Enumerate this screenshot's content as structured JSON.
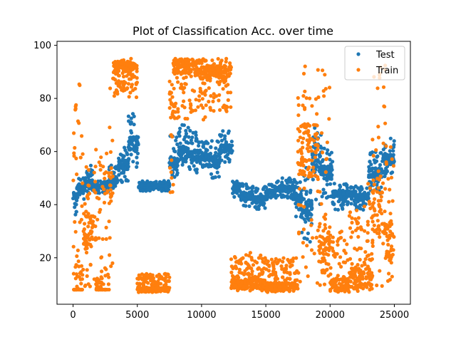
{
  "chart_data": {
    "type": "scatter",
    "title": "Plot of Classification Acc. over time",
    "xlabel": "",
    "ylabel": "",
    "xlim": [
      -1250,
      26250
    ],
    "ylim": [
      2.5,
      101.5
    ],
    "xticks": [
      0,
      5000,
      10000,
      15000,
      20000,
      25000
    ],
    "yticks": [
      20,
      40,
      60,
      80,
      100
    ],
    "grid": false,
    "legend_position": "top-right",
    "series": [
      {
        "name": "Test",
        "color": "#1f77b4",
        "segments": [
          {
            "x0": 0,
            "x1": 300,
            "lo": 36,
            "hi": 48,
            "mid": 43
          },
          {
            "x0": 300,
            "x1": 900,
            "lo": 42,
            "hi": 50,
            "mid": 46
          },
          {
            "x0": 900,
            "x1": 1500,
            "lo": 44,
            "hi": 55,
            "mid": 48
          },
          {
            "x0": 1500,
            "x1": 2800,
            "lo": 44,
            "hi": 49,
            "mid": 47
          },
          {
            "x0": 2800,
            "x1": 3500,
            "lo": 46,
            "hi": 55,
            "mid": 49
          },
          {
            "x0": 3500,
            "x1": 4300,
            "lo": 48,
            "hi": 62,
            "mid": 55
          },
          {
            "x0": 4300,
            "x1": 5100,
            "lo": 54,
            "hi": 75,
            "mid": 63
          },
          {
            "x0": 5100,
            "x1": 7500,
            "lo": 45,
            "hi": 49,
            "mid": 47
          },
          {
            "x0": 7500,
            "x1": 8200,
            "lo": 50,
            "hi": 66,
            "mid": 56
          },
          {
            "x0": 8200,
            "x1": 9000,
            "lo": 55,
            "hi": 70,
            "mid": 60
          },
          {
            "x0": 9000,
            "x1": 9800,
            "lo": 52,
            "hi": 68,
            "mid": 58
          },
          {
            "x0": 9800,
            "x1": 10600,
            "lo": 54,
            "hi": 64,
            "mid": 58
          },
          {
            "x0": 10600,
            "x1": 11400,
            "lo": 50,
            "hi": 64,
            "mid": 56
          },
          {
            "x0": 11400,
            "x1": 12400,
            "lo": 56,
            "hi": 68,
            "mid": 61
          },
          {
            "x0": 12400,
            "x1": 13000,
            "lo": 42,
            "hi": 49,
            "mid": 46
          },
          {
            "x0": 13000,
            "x1": 14000,
            "lo": 39,
            "hi": 48,
            "mid": 43
          },
          {
            "x0": 14000,
            "x1": 15000,
            "lo": 38,
            "hi": 47,
            "mid": 42
          },
          {
            "x0": 15000,
            "x1": 15700,
            "lo": 42,
            "hi": 48,
            "mid": 45
          },
          {
            "x0": 15700,
            "x1": 17300,
            "lo": 42,
            "hi": 50,
            "mid": 46
          },
          {
            "x0": 17300,
            "x1": 17800,
            "lo": 35,
            "hi": 50,
            "mid": 42
          },
          {
            "x0": 17800,
            "x1": 18600,
            "lo": 24,
            "hi": 55,
            "mid": 38
          },
          {
            "x0": 18600,
            "x1": 19300,
            "lo": 40,
            "hi": 70,
            "mid": 56
          },
          {
            "x0": 19300,
            "x1": 20200,
            "lo": 42,
            "hi": 62,
            "mid": 52
          },
          {
            "x0": 20200,
            "x1": 21000,
            "lo": 38,
            "hi": 48,
            "mid": 44
          },
          {
            "x0": 21000,
            "x1": 22000,
            "lo": 40,
            "hi": 48,
            "mid": 44
          },
          {
            "x0": 22000,
            "x1": 23000,
            "lo": 38,
            "hi": 47,
            "mid": 43
          },
          {
            "x0": 23000,
            "x1": 24000,
            "lo": 44,
            "hi": 60,
            "mid": 52
          },
          {
            "x0": 24000,
            "x1": 25000,
            "lo": 50,
            "hi": 65,
            "mid": 57
          }
        ]
      },
      {
        "name": "Train",
        "color": "#ff7f0e",
        "segments": [
          {
            "x0": 0,
            "x1": 800,
            "lo": 8,
            "hi": 86,
            "mid": 8
          },
          {
            "x0": 800,
            "x1": 1800,
            "lo": 8,
            "hi": 62,
            "mid": 30
          },
          {
            "x0": 1800,
            "x1": 2800,
            "lo": 8,
            "hi": 60,
            "mid": 8
          },
          {
            "x0": 2800,
            "x1": 3100,
            "lo": 8,
            "hi": 85,
            "mid": 45
          },
          {
            "x0": 3100,
            "x1": 5000,
            "lo": 80,
            "hi": 95,
            "mid": 92
          },
          {
            "x0": 5000,
            "x1": 7500,
            "lo": 7,
            "hi": 14,
            "mid": 8
          },
          {
            "x0": 7500,
            "x1": 7800,
            "lo": 38,
            "hi": 90,
            "mid": 80
          },
          {
            "x0": 7800,
            "x1": 10300,
            "lo": 72,
            "hi": 95,
            "mid": 92
          },
          {
            "x0": 10300,
            "x1": 12300,
            "lo": 75,
            "hi": 95,
            "mid": 90
          },
          {
            "x0": 12300,
            "x1": 15000,
            "lo": 7,
            "hi": 22,
            "mid": 10
          },
          {
            "x0": 15000,
            "x1": 17500,
            "lo": 7,
            "hi": 20,
            "mid": 9
          },
          {
            "x0": 17500,
            "x1": 19100,
            "lo": 10,
            "hi": 95,
            "mid": 60
          },
          {
            "x0": 19100,
            "x1": 20000,
            "lo": 8,
            "hi": 95,
            "mid": 25
          },
          {
            "x0": 20000,
            "x1": 21500,
            "lo": 7,
            "hi": 30,
            "mid": 10
          },
          {
            "x0": 21500,
            "x1": 22800,
            "lo": 7,
            "hi": 40,
            "mid": 12
          },
          {
            "x0": 22800,
            "x1": 23300,
            "lo": 8,
            "hi": 50,
            "mid": 12
          },
          {
            "x0": 23300,
            "x1": 24300,
            "lo": 8,
            "hi": 95,
            "mid": 40
          },
          {
            "x0": 24300,
            "x1": 25000,
            "lo": 8,
            "hi": 70,
            "mid": 25
          }
        ]
      }
    ]
  }
}
